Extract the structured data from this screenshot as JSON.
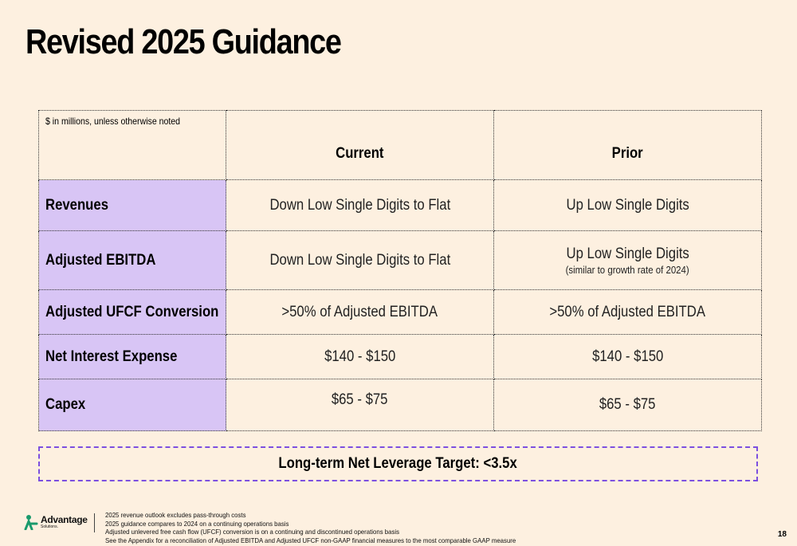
{
  "slide": {
    "title": "Revised 2025 Guidance",
    "page_number": "18"
  },
  "table": {
    "units_note": "$ in millions, unless otherwise noted",
    "col_current": "Current",
    "col_prior": "Prior",
    "rows": [
      {
        "label": "Revenues",
        "current": "Down Low Single Digits to Flat",
        "prior": "Up Low Single Digits",
        "prior_note": ""
      },
      {
        "label": "Adjusted EBITDA",
        "current": "Down Low Single Digits to Flat",
        "prior": "Up Low Single Digits",
        "prior_note": "(similar to growth rate of 2024)"
      },
      {
        "label": "Adjusted UFCF Conversion",
        "current": ">50% of Adjusted EBITDA",
        "prior": ">50% of Adjusted EBITDA",
        "prior_note": ""
      },
      {
        "label": "Net Interest Expense",
        "current": "$140 - $150",
        "prior": "$140 - $150",
        "prior_note": ""
      },
      {
        "label": "Capex",
        "current": "$65 - $75",
        "prior": "$65 - $75",
        "prior_note": ""
      }
    ]
  },
  "leverage_target": "Long-term Net Leverage Target: <3.5x",
  "logo": {
    "name": "Advantage",
    "sub": "Solutions.",
    "icon": "advantage-logo-icon",
    "color": "#1a9a6c"
  },
  "footnotes": [
    "2025 revenue outlook excludes pass-through costs",
    "2025 guidance compares to 2024 on a continuing operations basis",
    "Adjusted unlevered free cash flow (UFCF) conversion is on a continuing and discontinued operations basis",
    "See the Appendix for a reconciliation of Adjusted EBITDA and Adjusted UFCF non-GAAP financial measures to the most comparable GAAP measure"
  ],
  "colors": {
    "background": "#fdf0e0",
    "row_header": "#d8c5f5",
    "leverage_border": "#7c4fe0"
  }
}
